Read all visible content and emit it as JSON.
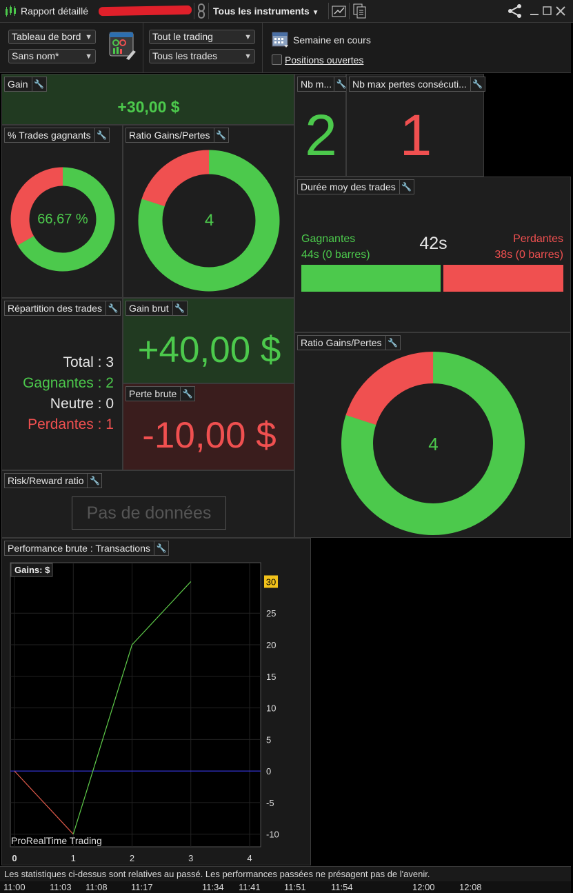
{
  "titlebar": {
    "title": "Rapport détaillé",
    "account": "",
    "instrument_selector": "Tous les instruments"
  },
  "toolbar": {
    "view_select": "Tableau de bord",
    "layout_select": "Sans nom*",
    "trading_select": "Tout le trading",
    "trades_select": "Tous les trades",
    "period_label": "Semaine en cours",
    "open_positions_label": "Positions ouvertes",
    "open_positions_checked": false
  },
  "panels": {
    "gain": {
      "title": "Gain",
      "value": "+30,00 $"
    },
    "nb_max_gains": {
      "title": "Nb m...",
      "value": "2"
    },
    "nb_max_losses": {
      "title": "Nb max pertes consécuti...",
      "value": "1"
    },
    "winning_trades": {
      "title": "% Trades gagnants",
      "value": "66,67 %",
      "win_fraction": 0.6667
    },
    "ratio_small": {
      "title": "Ratio Gains/Pertes",
      "value": "4",
      "win_fraction": 0.8
    },
    "avg_duration": {
      "title": "Durée moy des trades",
      "win_label": "Gagnantes",
      "win_value": "44s (0 barres)",
      "avg": "42s",
      "loss_label": "Perdantes",
      "loss_value": "38s (0 barres)",
      "win_seconds": 44,
      "loss_seconds": 38
    },
    "distribution": {
      "title": "Répartition des trades",
      "total": "Total : 3",
      "winners": "Gagnantes : 2",
      "neutral": "Neutre : 0",
      "losers": "Perdantes : 1"
    },
    "gross_gain": {
      "title": "Gain brut",
      "value": "+40,00 $"
    },
    "gross_loss": {
      "title": "Perte brute",
      "value": "-10,00 $"
    },
    "ratio_large": {
      "title": "Ratio Gains/Pertes",
      "value": "4",
      "win_fraction": 0.8
    },
    "risk_reward": {
      "title": "Risk/Reward ratio",
      "no_data": "Pas de données"
    },
    "performance": {
      "title": "Performance brute : Transactions"
    }
  },
  "chart_data": {
    "type": "line",
    "legend": "Gains: $",
    "watermark": "ProRealTime Trading",
    "x": [
      0,
      1,
      2,
      3
    ],
    "values": [
      0,
      -10,
      20,
      30
    ],
    "current_value_label": "30",
    "xticks": [
      "0",
      "1",
      "2",
      "3",
      "4"
    ],
    "yticks": [
      "25",
      "20",
      "15",
      "10",
      "5",
      "0",
      "-5",
      "-10"
    ],
    "ylim": [
      -12,
      33
    ],
    "xlim": [
      0,
      4
    ],
    "colors": {
      "down": "#e05a4a",
      "up": "#5fcc4a",
      "zero_line": "#3a3aff",
      "label_bg": "#f2c21b"
    }
  },
  "footer": {
    "disclaimer": "Les statistiques ci-dessus sont relatives au passé. Les performances passées ne présagent pas de l'avenir.",
    "times": [
      "11:00",
      "11:03",
      "11:08",
      "11:17",
      "11:34",
      "11:41",
      "11:51",
      "11:54",
      "12:00",
      "12:08"
    ]
  },
  "colors": {
    "green": "#4cc94c",
    "red": "#f05050",
    "panel": "#1e1e1e"
  }
}
